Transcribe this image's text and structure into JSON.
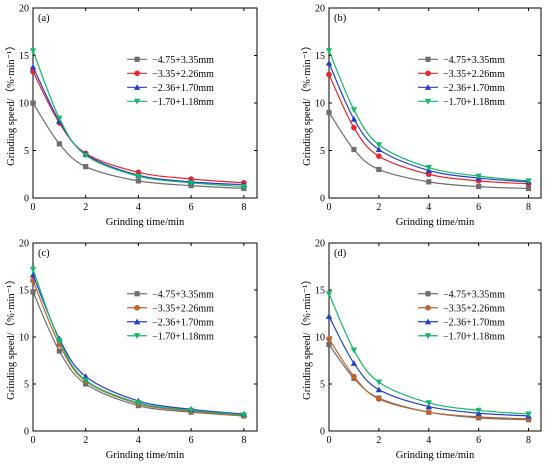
{
  "chart_data": [
    {
      "type": "line",
      "panel_label": "(a)",
      "xlabel": "Grinding time/min",
      "ylabel": "Grinding speed/（%·min⁻¹）",
      "xlim": [
        0,
        8.5
      ],
      "ylim": [
        0,
        20
      ],
      "xticks": [
        "0",
        "2",
        "4",
        "6",
        "8"
      ],
      "yticks": [
        "0",
        "5",
        "10",
        "15",
        "20"
      ],
      "grid": false,
      "legend_position": "right-center",
      "x": [
        0,
        1,
        2,
        4,
        6,
        8
      ],
      "series": [
        {
          "name": "−4.75+3.35mm",
          "color": "#6e6e6e",
          "marker": "square",
          "values": [
            10.0,
            5.7,
            3.3,
            1.8,
            1.3,
            1.0
          ]
        },
        {
          "name": "−3.35+2.26mm",
          "color": "#e8262b",
          "marker": "circle",
          "values": [
            13.3,
            7.9,
            4.7,
            2.7,
            2.0,
            1.6
          ]
        },
        {
          "name": "−2.36+1.70mm",
          "color": "#2440c8",
          "marker": "triangle-up",
          "values": [
            13.8,
            8.1,
            4.6,
            2.4,
            1.7,
            1.4
          ]
        },
        {
          "name": "−1.70+1.18mm",
          "color": "#14b86a",
          "marker": "triangle-down",
          "values": [
            15.5,
            8.4,
            4.5,
            2.3,
            1.6,
            1.2
          ]
        }
      ]
    },
    {
      "type": "line",
      "panel_label": "(b)",
      "xlabel": "Grinding time/min",
      "ylabel": "Grinding speed/（%·min⁻¹）",
      "xlim": [
        0,
        8.5
      ],
      "ylim": [
        0,
        20
      ],
      "xticks": [
        "0",
        "2",
        "4",
        "6",
        "8"
      ],
      "yticks": [
        "0",
        "5",
        "10",
        "15",
        "20"
      ],
      "grid": false,
      "legend_position": "right-center",
      "x": [
        0,
        1,
        2,
        4,
        6,
        8
      ],
      "series": [
        {
          "name": "−4.75+3.35mm",
          "color": "#6e6e6e",
          "marker": "square",
          "values": [
            9.0,
            5.1,
            3.0,
            1.7,
            1.2,
            1.0
          ]
        },
        {
          "name": "−3.35+2.26mm",
          "color": "#e8262b",
          "marker": "circle",
          "values": [
            13.0,
            7.4,
            4.4,
            2.5,
            1.8,
            1.5
          ]
        },
        {
          "name": "−2.36+1.70mm",
          "color": "#2440c8",
          "marker": "triangle-up",
          "values": [
            14.2,
            8.3,
            5.1,
            2.9,
            2.1,
            1.7
          ]
        },
        {
          "name": "−1.70+1.18mm",
          "color": "#14b86a",
          "marker": "triangle-down",
          "values": [
            15.5,
            9.3,
            5.6,
            3.2,
            2.3,
            1.8
          ]
        }
      ]
    },
    {
      "type": "line",
      "panel_label": "(c)",
      "xlabel": "Grinding time/min",
      "ylabel": "Grinding speed/（%·min⁻¹）",
      "xlim": [
        0,
        8.5
      ],
      "ylim": [
        0,
        20
      ],
      "xticks": [
        "0",
        "2",
        "4",
        "6",
        "8"
      ],
      "yticks": [
        "0",
        "5",
        "10",
        "15",
        "20"
      ],
      "grid": false,
      "legend_position": "right-center",
      "x": [
        0,
        1,
        2,
        4,
        6,
        8
      ],
      "series": [
        {
          "name": "−4.75+3.35mm",
          "color": "#6e6e6e",
          "marker": "square",
          "values": [
            14.8,
            8.5,
            5.0,
            2.7,
            2.0,
            1.6
          ]
        },
        {
          "name": "−3.35+2.26mm",
          "color": "#c0622e",
          "marker": "circle",
          "values": [
            16.0,
            9.2,
            5.3,
            2.9,
            2.1,
            1.6
          ]
        },
        {
          "name": "−2.36+1.70mm",
          "color": "#2440c8",
          "marker": "triangle-up",
          "values": [
            16.6,
            9.8,
            5.8,
            3.2,
            2.3,
            1.8
          ]
        },
        {
          "name": "−1.70+1.18mm",
          "color": "#14b86a",
          "marker": "triangle-down",
          "values": [
            17.2,
            9.6,
            5.4,
            3.0,
            2.2,
            1.7
          ]
        }
      ]
    },
    {
      "type": "line",
      "panel_label": "(d)",
      "xlabel": "Grinding time/min",
      "ylabel": "Grinding speed/（%·min⁻¹）",
      "xlim": [
        0,
        8.5
      ],
      "ylim": [
        0,
        20
      ],
      "xticks": [
        "0",
        "2",
        "4",
        "6",
        "8"
      ],
      "yticks": [
        "0",
        "5",
        "10",
        "15",
        "20"
      ],
      "grid": false,
      "legend_position": "right-center",
      "x": [
        0,
        1,
        2,
        4,
        6,
        8
      ],
      "series": [
        {
          "name": "−4.75+3.35mm",
          "color": "#6e6e6e",
          "marker": "square",
          "values": [
            9.2,
            5.6,
            3.5,
            2.0,
            1.4,
            1.2
          ]
        },
        {
          "name": "−3.35+2.26mm",
          "color": "#c0622e",
          "marker": "circle",
          "values": [
            9.8,
            5.8,
            3.4,
            2.0,
            1.5,
            1.3
          ]
        },
        {
          "name": "−2.36+1.70mm",
          "color": "#2440c8",
          "marker": "triangle-up",
          "values": [
            12.2,
            7.2,
            4.4,
            2.6,
            1.9,
            1.6
          ]
        },
        {
          "name": "−1.70+1.18mm",
          "color": "#14b86a",
          "marker": "triangle-down",
          "values": [
            14.6,
            8.6,
            5.2,
            3.0,
            2.2,
            1.8
          ]
        }
      ]
    }
  ]
}
